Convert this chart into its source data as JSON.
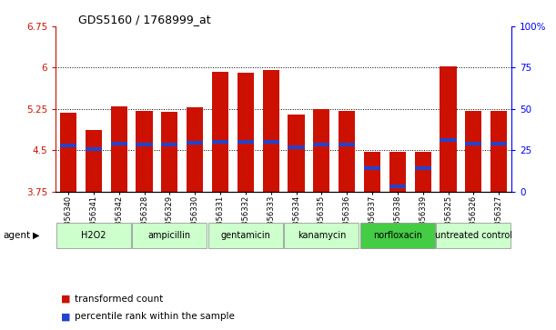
{
  "title": "GDS5160 / 1768999_at",
  "samples": [
    "GSM1356340",
    "GSM1356341",
    "GSM1356342",
    "GSM1356328",
    "GSM1356329",
    "GSM1356330",
    "GSM1356331",
    "GSM1356332",
    "GSM1356333",
    "GSM1356334",
    "GSM1356335",
    "GSM1356336",
    "GSM1356337",
    "GSM1356338",
    "GSM1356339",
    "GSM1356325",
    "GSM1356326",
    "GSM1356327"
  ],
  "bar_values": [
    5.18,
    4.87,
    5.3,
    5.22,
    5.2,
    5.28,
    5.93,
    5.91,
    5.95,
    5.15,
    5.25,
    5.22,
    4.47,
    4.47,
    4.47,
    6.02,
    5.22,
    5.22
  ],
  "percentile_values": [
    4.58,
    4.52,
    4.62,
    4.6,
    4.6,
    4.63,
    4.65,
    4.65,
    4.65,
    4.55,
    4.6,
    4.6,
    4.17,
    3.84,
    4.17,
    4.68,
    4.62,
    4.62
  ],
  "groups": [
    {
      "label": "H2O2",
      "start": 0,
      "end": 3,
      "color": "#ccffcc"
    },
    {
      "label": "ampicillin",
      "start": 3,
      "end": 6,
      "color": "#ccffcc"
    },
    {
      "label": "gentamicin",
      "start": 6,
      "end": 9,
      "color": "#ccffcc"
    },
    {
      "label": "kanamycin",
      "start": 9,
      "end": 12,
      "color": "#ccffcc"
    },
    {
      "label": "norfloxacin",
      "start": 12,
      "end": 15,
      "color": "#44cc44"
    },
    {
      "label": "untreated control",
      "start": 15,
      "end": 18,
      "color": "#ccffcc"
    }
  ],
  "ylim": [
    3.75,
    6.75
  ],
  "yticks": [
    3.75,
    4.5,
    5.25,
    6.0,
    6.75
  ],
  "ytick_labels": [
    "3.75",
    "4.5",
    "5.25",
    "6",
    "6.75"
  ],
  "y2ticks": [
    0,
    25,
    50,
    75,
    100
  ],
  "bar_color": "#cc1100",
  "blue_color": "#2244cc",
  "agent_label": "agent",
  "legend_transformed": "transformed count",
  "legend_percentile": "percentile rank within the sample"
}
